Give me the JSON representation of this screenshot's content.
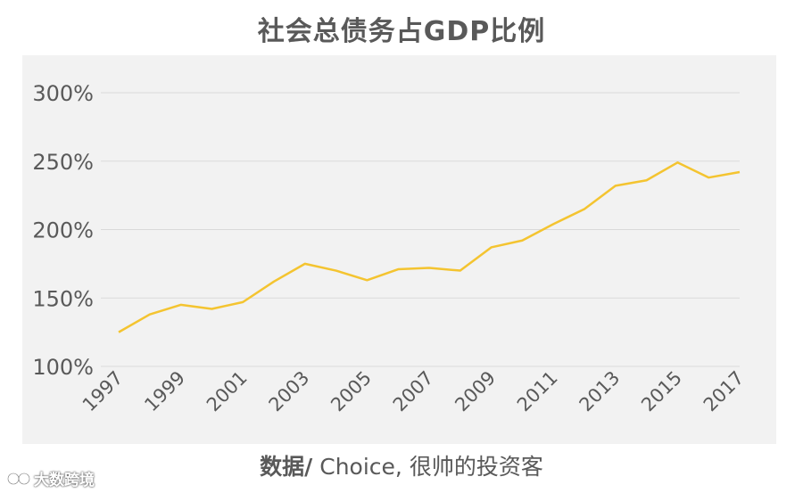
{
  "chart_data": {
    "type": "line",
    "title": "社会总债务占GDP比例",
    "xlabel": "",
    "ylabel": "",
    "ylim": [
      100,
      300
    ],
    "y_ticks": [
      100,
      150,
      200,
      250,
      300
    ],
    "y_tick_labels": [
      "100%",
      "150%",
      "200%",
      "250%",
      "300%"
    ],
    "x_tick_labels": [
      "1997",
      "1999",
      "2001",
      "2003",
      "2005",
      "2007",
      "2009",
      "2011",
      "2013",
      "2015",
      "2017"
    ],
    "x": [
      1997,
      1998,
      1999,
      2000,
      2001,
      2002,
      2003,
      2004,
      2005,
      2006,
      2007,
      2008,
      2009,
      2010,
      2011,
      2012,
      2013,
      2014,
      2015,
      2016,
      2017
    ],
    "series": [
      {
        "values": [
          125,
          138,
          145,
          142,
          147,
          162,
          175,
          170,
          163,
          171,
          172,
          170,
          187,
          192,
          204,
          215,
          232,
          236,
          249,
          238,
          242
        ]
      }
    ],
    "grid": true,
    "line_color": "#f4c430",
    "grid_color": "#d9d9d9"
  },
  "footer": {
    "source_label": "数据/",
    "source_text": " Choice, 很帅的投资客"
  },
  "watermark": {
    "text": "大数跨境"
  }
}
